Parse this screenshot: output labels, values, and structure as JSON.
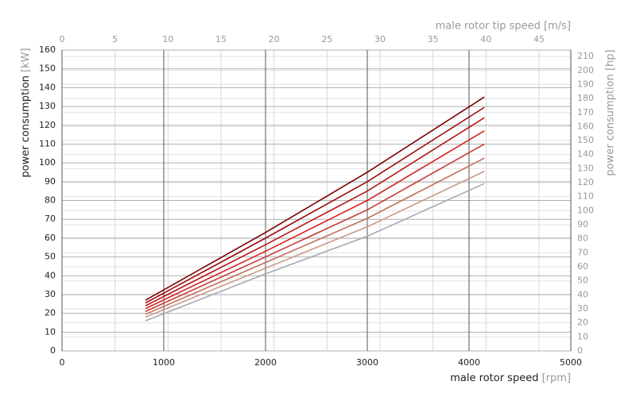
{
  "chart_data": {
    "type": "line",
    "x_label": "male rotor speed",
    "x_unit": "[rpm]",
    "y_label": "power consumption",
    "y_unit": "[kW]",
    "x2_label": "male rotor tip speed [m/s]",
    "y2_label": "power consumption [hp]",
    "x": [
      820,
      2000,
      3000,
      4150
    ],
    "xlim": [
      0,
      5000
    ],
    "xticks": [
      0,
      1000,
      2000,
      3000,
      4000,
      5000
    ],
    "x2lim": [
      0,
      48
    ],
    "x2ticks": [
      0,
      5,
      10,
      15,
      20,
      25,
      30,
      35,
      40,
      45
    ],
    "ylim": [
      0,
      160
    ],
    "yticks": [
      0,
      10,
      20,
      30,
      40,
      50,
      60,
      70,
      80,
      90,
      100,
      110,
      120,
      130,
      140,
      150,
      160
    ],
    "y2lim": [
      0,
      214.6
    ],
    "y2ticks": [
      0,
      10,
      20,
      30,
      40,
      50,
      60,
      70,
      80,
      90,
      100,
      110,
      120,
      130,
      140,
      150,
      160,
      170,
      180,
      190,
      200,
      210
    ],
    "grid": true,
    "series": [
      {
        "color": "#7a0000",
        "values": [
          27,
          63,
          95,
          135
        ]
      },
      {
        "color": "#9b0a0a",
        "values": [
          25.5,
          60,
          90,
          129.5
        ]
      },
      {
        "color": "#b81414",
        "values": [
          24,
          56.5,
          85,
          124
        ]
      },
      {
        "color": "#d42020",
        "values": [
          22.5,
          53,
          80,
          117
        ]
      },
      {
        "color": "#c43a3a",
        "values": [
          21,
          50,
          75,
          110
        ]
      },
      {
        "color": "#c0705a",
        "values": [
          19.5,
          47,
          70.5,
          102.5
        ]
      },
      {
        "color": "#c99a8a",
        "values": [
          18,
          44,
          66,
          95.5
        ]
      },
      {
        "color": "#a8a8b0",
        "values": [
          16,
          41,
          61,
          89
        ]
      }
    ]
  }
}
